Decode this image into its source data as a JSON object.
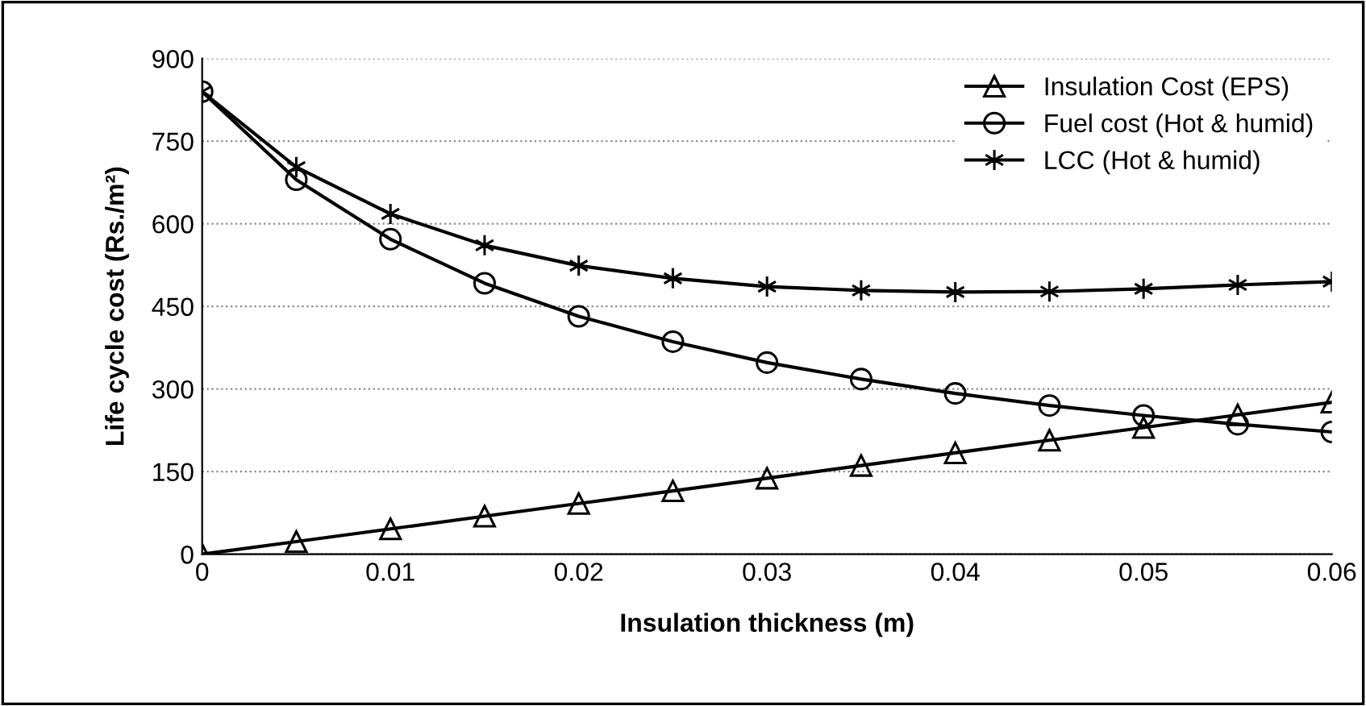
{
  "chart_data": {
    "type": "line",
    "xlabel": "Insulation thickness (m)",
    "ylabel": "Life cycle cost (Rs./m²)",
    "x": [
      0,
      0.005,
      0.01,
      0.015,
      0.02,
      0.025,
      0.03,
      0.035,
      0.04,
      0.045,
      0.05,
      0.055,
      0.06
    ],
    "series": [
      {
        "name": "Insulation Cost (EPS)",
        "color": "#000000",
        "marker": "triangle",
        "values": [
          0,
          23,
          46,
          69,
          92,
          115,
          138,
          161,
          184,
          207,
          230,
          253,
          276
        ]
      },
      {
        "name": "Fuel cost (Hot & humid)",
        "color": "#000000",
        "marker": "circle",
        "values": [
          840,
          680,
          572,
          492,
          432,
          386,
          348,
          318,
          292,
          270,
          252,
          236,
          222
        ]
      },
      {
        "name": "LCC (Hot & humid)",
        "color": "#000000",
        "marker": "cross",
        "values": [
          840,
          703,
          618,
          561,
          524,
          501,
          486,
          479,
          476,
          477,
          482,
          489,
          495
        ]
      }
    ],
    "xlim": [
      0,
      0.06
    ],
    "xticks": [
      0,
      0.01,
      0.02,
      0.03,
      0.04,
      0.05,
      0.06
    ],
    "ylim": [
      0,
      900
    ],
    "yticks": [
      0,
      150,
      300,
      450,
      600,
      750,
      900
    ],
    "grid": "y",
    "legend": "top right",
    "line_style": "solid"
  }
}
